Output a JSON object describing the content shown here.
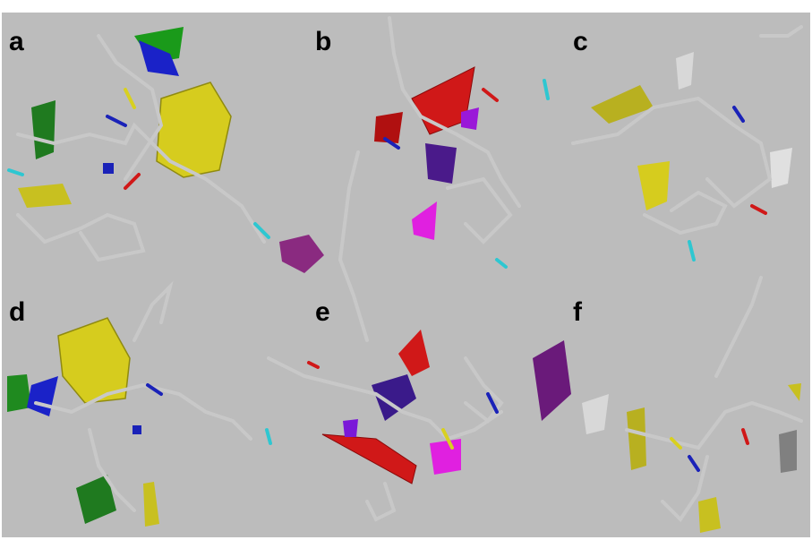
{
  "panels": [
    {
      "label": "a"
    },
    {
      "label": "b"
    },
    {
      "label": "c"
    },
    {
      "label": "d"
    },
    {
      "label": "e"
    },
    {
      "label": "f"
    }
  ]
}
